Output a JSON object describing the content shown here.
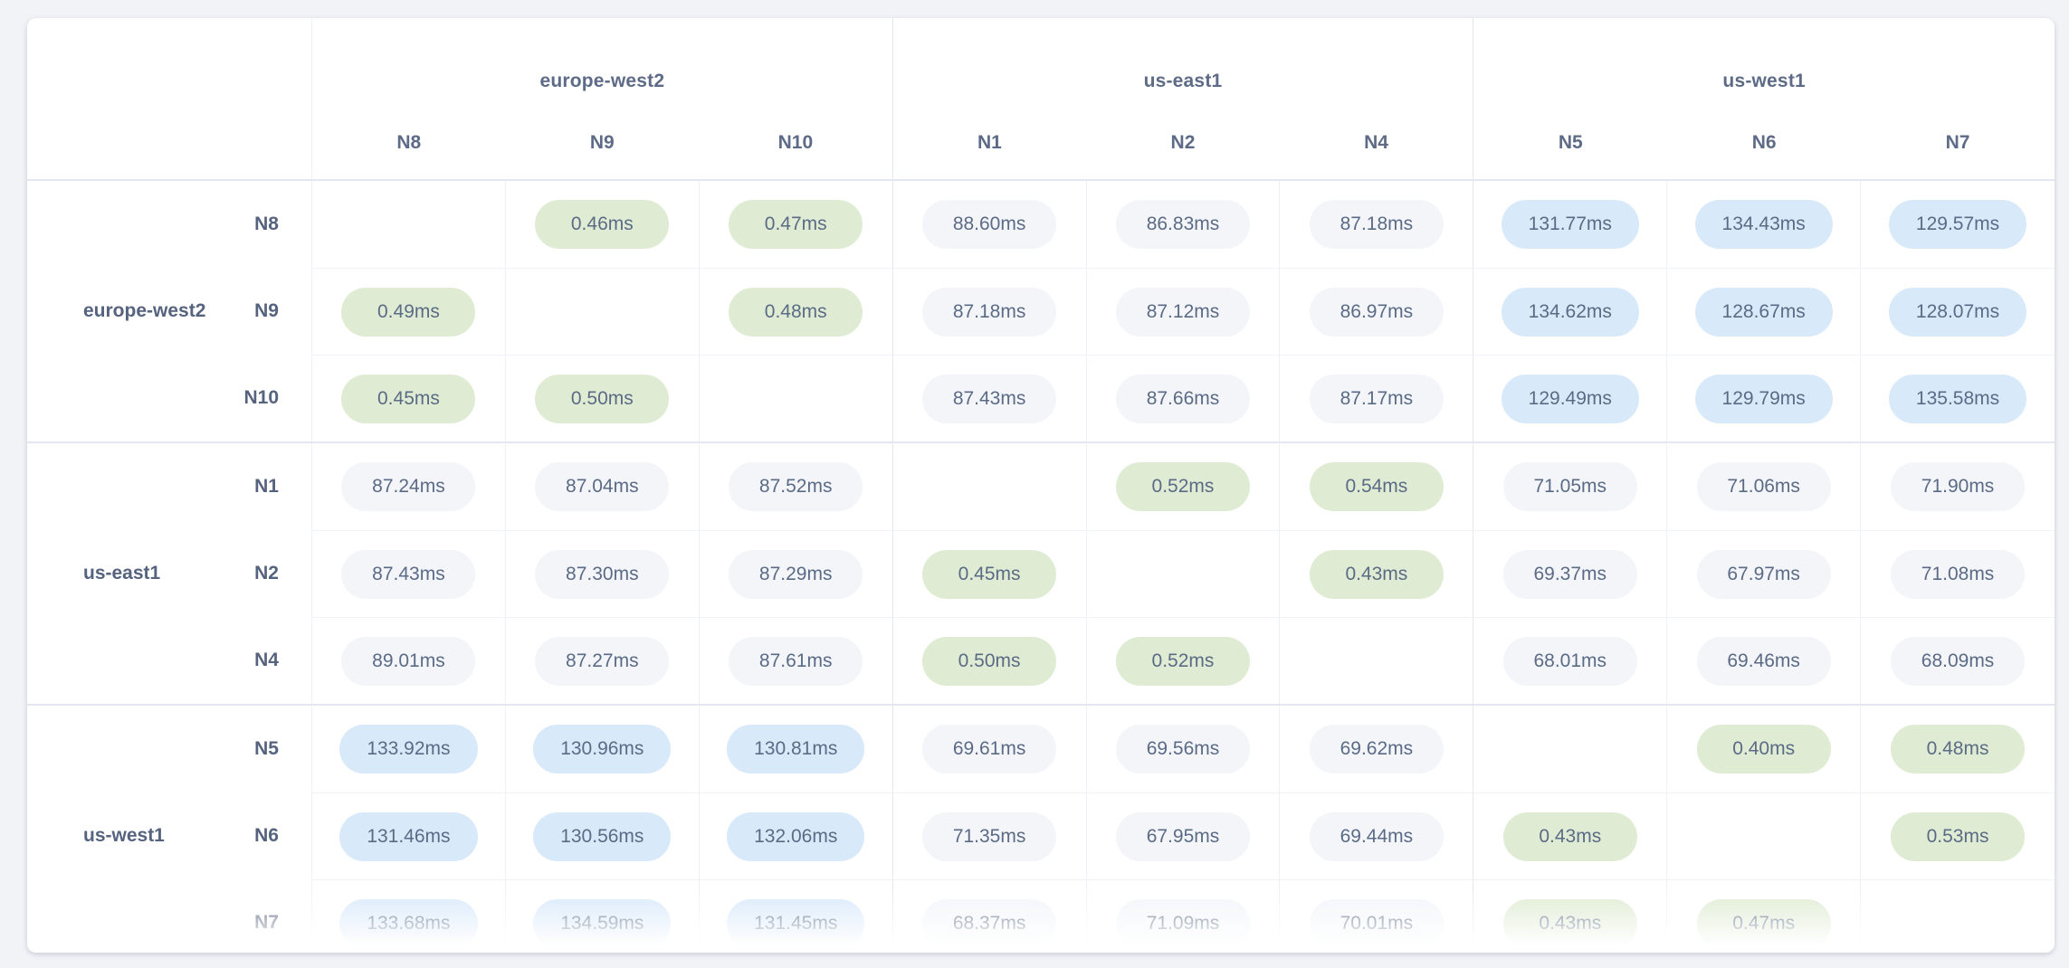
{
  "page": {
    "background": "#f1f3f7"
  },
  "matrix": {
    "unit_suffix": "ms",
    "column_groups": [
      {
        "region": "europe-west2",
        "nodes": [
          "N8",
          "N9",
          "N10"
        ]
      },
      {
        "region": "us-east1",
        "nodes": [
          "N1",
          "N2",
          "N4"
        ]
      },
      {
        "region": "us-west1",
        "nodes": [
          "N5",
          "N6",
          "N7"
        ]
      }
    ],
    "row_groups": [
      {
        "region": "europe-west2",
        "nodes": [
          "N8",
          "N9",
          "N10"
        ]
      },
      {
        "region": "us-east1",
        "nodes": [
          "N1",
          "N2",
          "N4"
        ]
      },
      {
        "region": "us-west1",
        "nodes": [
          "N5",
          "N6",
          "N7"
        ]
      }
    ],
    "cell_colors": {
      "low": "#dfecd3",
      "mid": "#f3f5f9",
      "high": "#d8e9fa",
      "text": "#5b6b86"
    },
    "thresholds": {
      "low_below_ms": 1,
      "high_above_ms": 100
    }
  },
  "chart_data": {
    "type": "heatmap",
    "title": "",
    "unit": "ms",
    "rows": [
      "N8",
      "N9",
      "N10",
      "N1",
      "N2",
      "N4",
      "N5",
      "N6",
      "N7"
    ],
    "cols": [
      "N8",
      "N9",
      "N10",
      "N1",
      "N2",
      "N4",
      "N5",
      "N6",
      "N7"
    ],
    "row_groups": [
      "europe-west2",
      "europe-west2",
      "europe-west2",
      "us-east1",
      "us-east1",
      "us-east1",
      "us-west1",
      "us-west1",
      "us-west1"
    ],
    "matrix": [
      [
        null,
        0.46,
        0.47,
        88.6,
        86.83,
        87.18,
        131.77,
        134.43,
        129.57
      ],
      [
        0.49,
        null,
        0.48,
        87.18,
        87.12,
        86.97,
        134.62,
        128.67,
        128.07
      ],
      [
        0.45,
        0.5,
        null,
        87.43,
        87.66,
        87.17,
        129.49,
        129.79,
        135.58
      ],
      [
        87.24,
        87.04,
        87.52,
        null,
        0.52,
        0.54,
        71.05,
        71.06,
        71.9
      ],
      [
        87.43,
        87.3,
        87.29,
        0.45,
        null,
        0.43,
        69.37,
        67.97,
        71.08
      ],
      [
        89.01,
        87.27,
        87.61,
        0.5,
        0.52,
        null,
        68.01,
        69.46,
        68.09
      ],
      [
        133.92,
        130.96,
        130.81,
        69.61,
        69.56,
        69.62,
        null,
        0.4,
        0.48
      ],
      [
        131.46,
        130.56,
        132.06,
        71.35,
        67.95,
        69.44,
        0.43,
        null,
        0.53
      ],
      [
        133.68,
        134.59,
        131.45,
        68.37,
        71.09,
        70.01,
        0.43,
        0.47,
        null
      ]
    ]
  }
}
